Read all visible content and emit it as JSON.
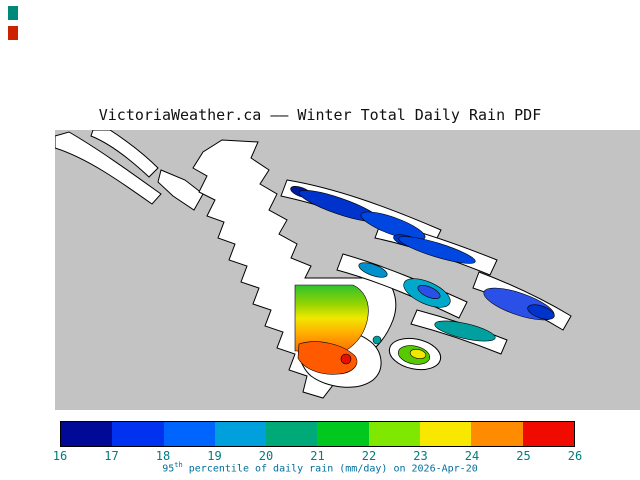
{
  "title": "VictoriaWeather.ca –– Winter Total Daily Rain PDF",
  "caption": {
    "value": "95",
    "superscript": "th",
    "rest": " percentile of daily rain (mm/day) on 2026-Apr-20"
  },
  "colorbar": {
    "min": 16,
    "max": 26,
    "units": "mm/day",
    "tick_labels": [
      "16",
      "17",
      "18",
      "19",
      "20",
      "21",
      "22",
      "23",
      "24",
      "25",
      "26"
    ],
    "segment_colors": [
      "#000a96",
      "#0032f0",
      "#0064ff",
      "#00a0dc",
      "#00aa78",
      "#00c81e",
      "#80e800",
      "#f8e800",
      "#ff8c00",
      "#f00a00"
    ],
    "tick_color": "#007d7d",
    "caption_color": "#006e9e"
  },
  "map": {
    "colors": {
      "background_gray": "#c3c3c3",
      "water_white": "#ffffff",
      "outline": "#000000"
    },
    "palette": {
      "navy": "#001a99",
      "blue_dark": "#0033cc",
      "blue": "#0046e0",
      "blue_medium": "#2a50e8",
      "cyan_blue": "#0090cc",
      "teal": "#00a0a0",
      "teal_cyan": "#00a8cc",
      "green_bright": "#58c800",
      "yellow": "#f0e800",
      "orange_red": "#ff5a00",
      "red": "#e81000"
    },
    "square_gradient": [
      "#2cc22c",
      "#9ad400",
      "#f0e800",
      "#ffb000",
      "#ff7000"
    ]
  },
  "artifacts": {
    "mark1_color": "#00897b",
    "mark2_color": "#cc2200"
  },
  "chart_data": {
    "type": "heatmap",
    "title": "VictoriaWeather.ca –– Winter Total Daily Rain PDF",
    "colorbar_label": "95th percentile of daily rain (mm/day) on 2026-Apr-20",
    "colorbar_range": [
      16,
      26
    ],
    "colorbar_ticks": [
      16,
      17,
      18,
      19,
      20,
      21,
      22,
      23,
      24,
      25,
      26
    ],
    "legend_position": "bottom",
    "regions": [
      {
        "area": "northwest island chain",
        "value_range": [
          16,
          18
        ]
      },
      {
        "area": "mid eastern islands",
        "value_range": [
          18,
          20
        ]
      },
      {
        "area": "far eastern island",
        "value_range": [
          17,
          19
        ]
      },
      {
        "area": "lower eastern islands",
        "value_range": [
          19,
          21
        ]
      },
      {
        "area": "central data square north",
        "value_range": [
          21,
          22
        ]
      },
      {
        "area": "central data square middle",
        "value_range": [
          22,
          24
        ]
      },
      {
        "area": "central data square south",
        "value_range": [
          24,
          25
        ]
      },
      {
        "area": "southern coastal blob",
        "value_range": [
          24,
          26
        ]
      },
      {
        "area": "small southern islet",
        "value_range": [
          21,
          23
        ]
      },
      {
        "area": "tiny red islet",
        "value_range": [
          25,
          26
        ]
      }
    ]
  }
}
